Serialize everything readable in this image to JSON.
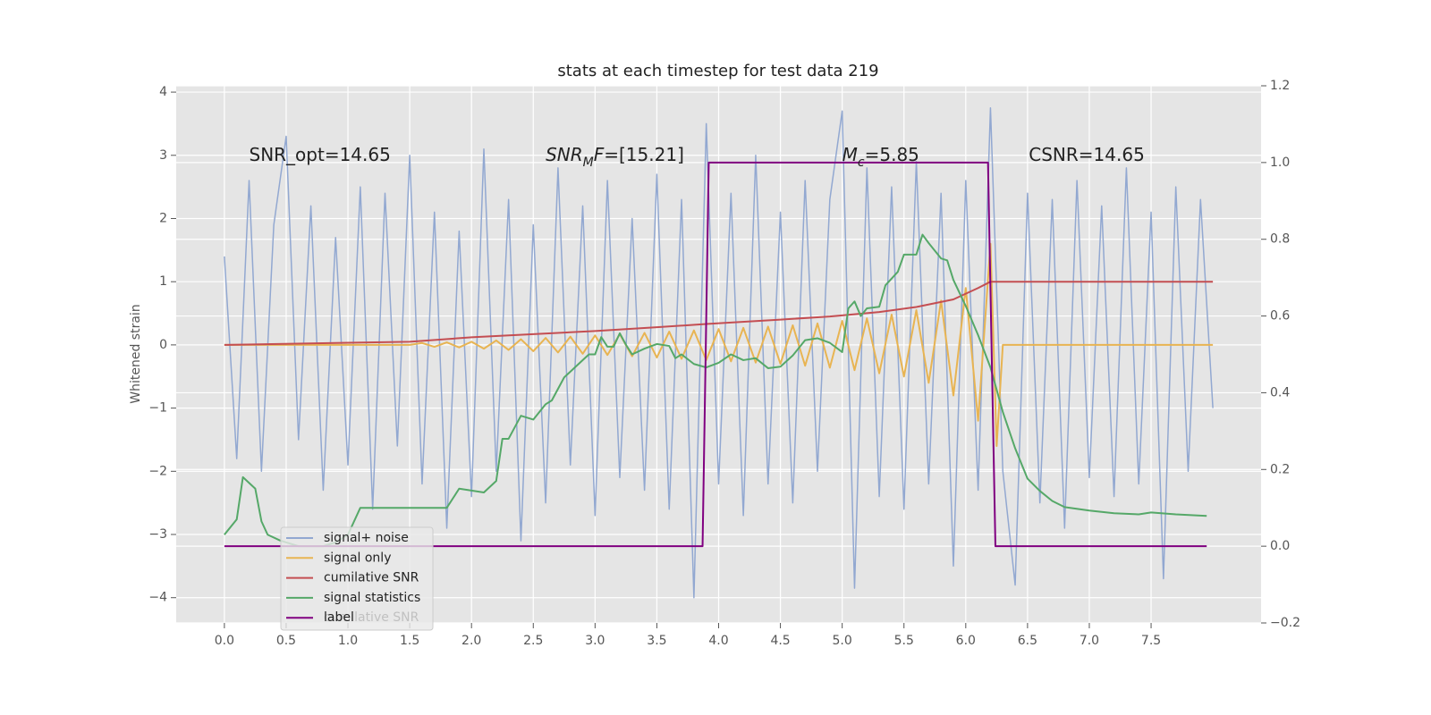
{
  "chart_data": {
    "type": "line",
    "title": "stats at each timestep for test data 219",
    "ylabel": "Whitened strain",
    "xlim": [
      -0.39,
      8.39
    ],
    "ylim": [
      -4.4,
      4.1
    ],
    "y2lim": [
      -0.2,
      1.2
    ],
    "xticks": [
      {
        "value": 0,
        "label": "0.0"
      },
      0.5,
      {
        "value": 1,
        "label": "1.0"
      },
      1.5,
      {
        "value": 2,
        "label": "2.0"
      },
      2.5,
      {
        "value": 3,
        "label": "3.0"
      },
      3.5,
      {
        "value": 4,
        "label": "4.0"
      },
      4.5,
      {
        "value": 5,
        "label": "5.0"
      },
      5.5,
      {
        "value": 6,
        "label": "6.0"
      },
      6.5,
      {
        "value": 7,
        "label": "7.0"
      },
      7.5
    ],
    "yticks": [
      {
        "value": -4,
        "label": "−4"
      },
      {
        "value": -3,
        "label": "−3"
      },
      {
        "value": -2,
        "label": "−2"
      },
      {
        "value": -1,
        "label": "−1"
      },
      0,
      1,
      2,
      3,
      4
    ],
    "y2ticks": [
      {
        "value": -0.2,
        "label": "−0.2"
      },
      {
        "value": 0,
        "label": "0.0"
      },
      0.2,
      0.4,
      0.6,
      0.8,
      {
        "value": 1,
        "label": "1.0"
      },
      1.2
    ],
    "grid": true,
    "legend": "lower left",
    "back_legend": [
      "cumilative SNR"
    ],
    "series": [
      {
        "name": "signal+ noise",
        "color": "#92a8d1",
        "axis": "y",
        "x": [
          0,
          0.1,
          0.2,
          0.3,
          0.4,
          0.5,
          0.6,
          0.7,
          0.8,
          0.9,
          1.0,
          1.1,
          1.2,
          1.3,
          1.4,
          1.5,
          1.6,
          1.7,
          1.8,
          1.9,
          2.0,
          2.1,
          2.2,
          2.3,
          2.4,
          2.5,
          2.6,
          2.7,
          2.8,
          2.9,
          3.0,
          3.1,
          3.2,
          3.3,
          3.4,
          3.5,
          3.6,
          3.7,
          3.8,
          3.9,
          4.0,
          4.1,
          4.2,
          4.3,
          4.4,
          4.5,
          4.6,
          4.7,
          4.8,
          4.9,
          5.0,
          5.1,
          5.2,
          5.3,
          5.4,
          5.5,
          5.6,
          5.7,
          5.8,
          5.9,
          6.0,
          6.1,
          6.2,
          6.3,
          6.4,
          6.5,
          6.6,
          6.7,
          6.8,
          6.9,
          7.0,
          7.1,
          7.2,
          7.3,
          7.4,
          7.5,
          7.6,
          7.7,
          7.8,
          7.9,
          8.0
        ],
        "values": [
          1.4,
          -1.8,
          2.6,
          -2.0,
          1.9,
          3.3,
          -1.5,
          2.2,
          -2.3,
          1.7,
          -1.9,
          2.5,
          -2.6,
          2.4,
          -1.6,
          3.0,
          -2.2,
          2.1,
          -2.9,
          1.8,
          -2.4,
          3.1,
          -2.0,
          2.3,
          -3.1,
          1.9,
          -2.5,
          2.8,
          -1.9,
          2.2,
          -2.7,
          2.6,
          -2.1,
          2.0,
          -2.3,
          2.7,
          -2.6,
          2.3,
          -4.0,
          3.5,
          -2.2,
          2.4,
          -2.7,
          3.0,
          -2.2,
          2.1,
          -2.5,
          2.6,
          -2.0,
          2.3,
          3.7,
          -3.85,
          2.8,
          -2.4,
          2.5,
          -2.6,
          2.9,
          -2.2,
          2.4,
          -3.5,
          2.6,
          -2.3,
          3.75,
          -2.0,
          -3.8,
          2.4,
          -2.5,
          2.3,
          -2.9,
          2.6,
          -2.1,
          2.2,
          -2.4,
          2.8,
          -2.2,
          2.1,
          -3.7,
          2.5,
          -2.0,
          2.3,
          -1.0
        ]
      },
      {
        "name": "signal only",
        "color": "#e8b452",
        "axis": "y",
        "x": [
          0,
          1.5,
          1.6,
          1.7,
          1.8,
          1.9,
          2.0,
          2.1,
          2.2,
          2.3,
          2.4,
          2.5,
          2.6,
          2.7,
          2.8,
          2.9,
          3.0,
          3.1,
          3.2,
          3.3,
          3.4,
          3.5,
          3.6,
          3.7,
          3.8,
          3.9,
          4.0,
          4.1,
          4.2,
          4.3,
          4.4,
          4.5,
          4.6,
          4.7,
          4.8,
          4.9,
          5.0,
          5.1,
          5.2,
          5.3,
          5.4,
          5.5,
          5.6,
          5.7,
          5.8,
          5.9,
          6.0,
          6.1,
          6.2,
          6.25,
          6.3,
          8.0
        ],
        "values": [
          0,
          0,
          0.03,
          -0.03,
          0.04,
          -0.04,
          0.05,
          -0.06,
          0.07,
          -0.08,
          0.09,
          -0.1,
          0.11,
          -0.12,
          0.13,
          -0.14,
          0.15,
          -0.16,
          0.17,
          -0.18,
          0.19,
          -0.2,
          0.21,
          -0.22,
          0.23,
          -0.24,
          0.25,
          -0.26,
          0.27,
          -0.28,
          0.29,
          -0.3,
          0.31,
          -0.33,
          0.34,
          -0.36,
          0.38,
          -0.4,
          0.42,
          -0.45,
          0.48,
          -0.5,
          0.55,
          -0.6,
          0.7,
          -0.8,
          0.9,
          -1.2,
          1.6,
          -1.6,
          0,
          0
        ]
      },
      {
        "name": "cumilative SNR",
        "color": "#c44e52",
        "axis": "y",
        "x": [
          0,
          1.5,
          2.0,
          2.5,
          3.0,
          3.5,
          3.9,
          4.5,
          4.9,
          5.3,
          5.6,
          5.9,
          6.1,
          6.2,
          8.0
        ],
        "values": [
          0,
          0.05,
          0.12,
          0.17,
          0.22,
          0.28,
          0.33,
          0.4,
          0.45,
          0.52,
          0.6,
          0.72,
          0.9,
          1.0,
          1.0
        ]
      },
      {
        "name": "signal statistics",
        "color": "#55a868",
        "axis": "y2",
        "x": [
          0,
          0.1,
          0.15,
          0.25,
          0.3,
          0.35,
          0.45,
          0.55,
          0.6,
          0.8,
          0.9,
          1.0,
          1.1,
          1.2,
          1.3,
          1.8,
          1.9,
          2.0,
          2.1,
          2.2,
          2.25,
          2.3,
          2.4,
          2.5,
          2.6,
          2.65,
          2.75,
          2.85,
          2.95,
          3.0,
          3.05,
          3.1,
          3.15,
          3.2,
          3.25,
          3.3,
          3.4,
          3.5,
          3.6,
          3.65,
          3.7,
          3.8,
          3.9,
          4.0,
          4.1,
          4.2,
          4.3,
          4.4,
          4.5,
          4.6,
          4.7,
          4.8,
          4.9,
          5.0,
          5.05,
          5.1,
          5.15,
          5.2,
          5.3,
          5.35,
          5.45,
          5.5,
          5.6,
          5.65,
          5.7,
          5.8,
          5.85,
          5.9,
          6.0,
          6.1,
          6.2,
          6.3,
          6.4,
          6.5,
          6.6,
          6.7,
          6.8,
          7.0,
          7.2,
          7.4,
          7.5,
          7.7,
          7.95
        ],
        "values": [
          0.03,
          0.07,
          0.18,
          0.15,
          0.065,
          0.03,
          0.015,
          0.005,
          0.0,
          0.0,
          0.01,
          0.03,
          0.1,
          0.1,
          0.1,
          0.1,
          0.15,
          0.145,
          0.14,
          0.17,
          0.28,
          0.28,
          0.34,
          0.33,
          0.37,
          0.38,
          0.44,
          0.47,
          0.5,
          0.5,
          0.545,
          0.52,
          0.52,
          0.555,
          0.525,
          0.5,
          0.515,
          0.527,
          0.522,
          0.49,
          0.5,
          0.475,
          0.466,
          0.478,
          0.5,
          0.485,
          0.49,
          0.464,
          0.468,
          0.497,
          0.537,
          0.542,
          0.53,
          0.506,
          0.62,
          0.638,
          0.6,
          0.62,
          0.624,
          0.68,
          0.715,
          0.76,
          0.76,
          0.812,
          0.79,
          0.75,
          0.745,
          0.694,
          0.626,
          0.55,
          0.466,
          0.35,
          0.255,
          0.176,
          0.144,
          0.118,
          0.102,
          0.093,
          0.086,
          0.083,
          0.088,
          0.083,
          0.079
        ]
      },
      {
        "name": "label",
        "color": "#800080",
        "axis": "y2",
        "x": [
          0,
          3.87,
          3.92,
          6.18,
          6.24,
          7.95
        ],
        "values": [
          0,
          0,
          1,
          1,
          0,
          0
        ]
      }
    ],
    "annotations": [
      {
        "x": 0.2,
        "y": 3.0,
        "parts": [
          {
            "text": "SNR_opt=14.65"
          }
        ]
      },
      {
        "x": 2.6,
        "y": 3.0,
        "parts": [
          {
            "text": "SNR",
            "style": "italic"
          },
          {
            "text": "M",
            "style": "italic-sub"
          },
          {
            "text": "F",
            "style": "italic"
          },
          {
            "text": "=[15.21]"
          }
        ]
      },
      {
        "x": 5.0,
        "y": 3.0,
        "parts": [
          {
            "text": "M",
            "style": "italic"
          },
          {
            "text": "c",
            "style": "italic-sub"
          },
          {
            "text": "=5.85"
          }
        ]
      },
      {
        "x": 6.51,
        "y": 3.0,
        "parts": [
          {
            "text": "CSNR=14.65"
          }
        ]
      }
    ]
  }
}
